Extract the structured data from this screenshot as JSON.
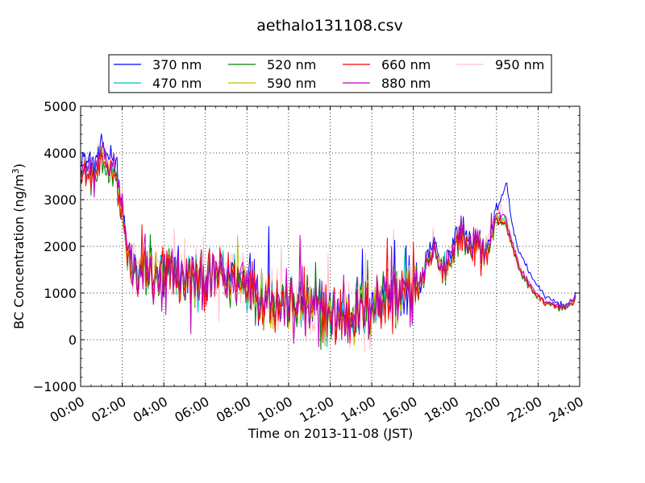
{
  "chart_data": {
    "type": "line",
    "title": "aethalo131108.csv",
    "xlabel": "Time on 2013-11-08 (JST)",
    "ylabel_main": "BC Concentration (ng/m",
    "ylabel_sup": "3",
    "ylabel_end": ")",
    "xlim": [
      0,
      24
    ],
    "ylim": [
      -1000,
      5000
    ],
    "x_ticks": [
      {
        "value": 0,
        "label": "00:00"
      },
      {
        "value": 2,
        "label": "02:00"
      },
      {
        "value": 4,
        "label": "04:00"
      },
      {
        "value": 6,
        "label": "06:00"
      },
      {
        "value": 8,
        "label": "08:00"
      },
      {
        "value": 10,
        "label": "10:00"
      },
      {
        "value": 12,
        "label": "12:00"
      },
      {
        "value": 14,
        "label": "14:00"
      },
      {
        "value": 16,
        "label": "16:00"
      },
      {
        "value": 18,
        "label": "18:00"
      },
      {
        "value": 20,
        "label": "20:00"
      },
      {
        "value": 22,
        "label": "22:00"
      },
      {
        "value": 24,
        "label": "24:00"
      }
    ],
    "y_ticks": [
      {
        "value": -1000,
        "label": "−1000"
      },
      {
        "value": 0,
        "label": "0"
      },
      {
        "value": 1000,
        "label": "1000"
      },
      {
        "value": 2000,
        "label": "2000"
      },
      {
        "value": 3000,
        "label": "3000"
      },
      {
        "value": 4000,
        "label": "4000"
      },
      {
        "value": 5000,
        "label": "5000"
      }
    ],
    "grid": true,
    "legend_position": "top",
    "series": [
      {
        "name": "370 nm",
        "color": "#0000ff"
      },
      {
        "name": "470 nm",
        "color": "#00bfbf"
      },
      {
        "name": "520 nm",
        "color": "#008000"
      },
      {
        "name": "590 nm",
        "color": "#bfbf00"
      },
      {
        "name": "660 nm",
        "color": "#ff0000"
      },
      {
        "name": "880 nm",
        "color": "#bf00bf"
      },
      {
        "name": "950 nm",
        "color": "#ffc0cb"
      }
    ],
    "base_profile": [
      [
        0.0,
        3650
      ],
      [
        0.3,
        3550
      ],
      [
        0.6,
        3450
      ],
      [
        0.9,
        3700
      ],
      [
        1.1,
        3950
      ],
      [
        1.3,
        3650
      ],
      [
        1.6,
        3700
      ],
      [
        1.8,
        3200
      ],
      [
        2.0,
        2600
      ],
      [
        2.2,
        1900
      ],
      [
        2.5,
        1450
      ],
      [
        2.8,
        1350
      ],
      [
        3.2,
        1500
      ],
      [
        3.6,
        1300
      ],
      [
        4.0,
        1300
      ],
      [
        4.4,
        1400
      ],
      [
        5.0,
        1250
      ],
      [
        5.6,
        1200
      ],
      [
        6.0,
        1300
      ],
      [
        6.5,
        1350
      ],
      [
        7.0,
        1250
      ],
      [
        7.5,
        1300
      ],
      [
        8.0,
        1250
      ],
      [
        8.5,
        1050
      ],
      [
        9.0,
        950
      ],
      [
        9.5,
        800
      ],
      [
        10.0,
        700
      ],
      [
        10.5,
        700
      ],
      [
        11.0,
        650
      ],
      [
        11.5,
        600
      ],
      [
        12.0,
        550
      ],
      [
        12.5,
        500
      ],
      [
        13.0,
        550
      ],
      [
        13.5,
        650
      ],
      [
        14.0,
        700
      ],
      [
        14.5,
        850
      ],
      [
        15.0,
        950
      ],
      [
        15.5,
        1000
      ],
      [
        16.0,
        1000
      ],
      [
        16.5,
        1350
      ],
      [
        17.0,
        1900
      ],
      [
        17.3,
        1500
      ],
      [
        17.6,
        1500
      ],
      [
        18.0,
        2000
      ],
      [
        18.3,
        2250
      ],
      [
        18.6,
        2000
      ],
      [
        19.0,
        2000
      ],
      [
        19.5,
        1850
      ],
      [
        19.8,
        2200
      ],
      [
        20.0,
        2650
      ],
      [
        20.4,
        2550
      ],
      [
        20.8,
        1950
      ],
      [
        21.2,
        1400
      ],
      [
        21.6,
        1150
      ],
      [
        22.0,
        900
      ],
      [
        22.5,
        750
      ],
      [
        23.0,
        700
      ],
      [
        23.5,
        700
      ],
      [
        23.8,
        900
      ]
    ],
    "series_370_late_peak": [
      [
        20.0,
        2700
      ],
      [
        20.3,
        2900
      ],
      [
        20.5,
        3100
      ],
      [
        20.7,
        2400
      ],
      [
        21.0,
        1850
      ],
      [
        21.5,
        1400
      ],
      [
        22.0,
        1050
      ],
      [
        22.5,
        800
      ],
      [
        23.0,
        750
      ]
    ]
  }
}
